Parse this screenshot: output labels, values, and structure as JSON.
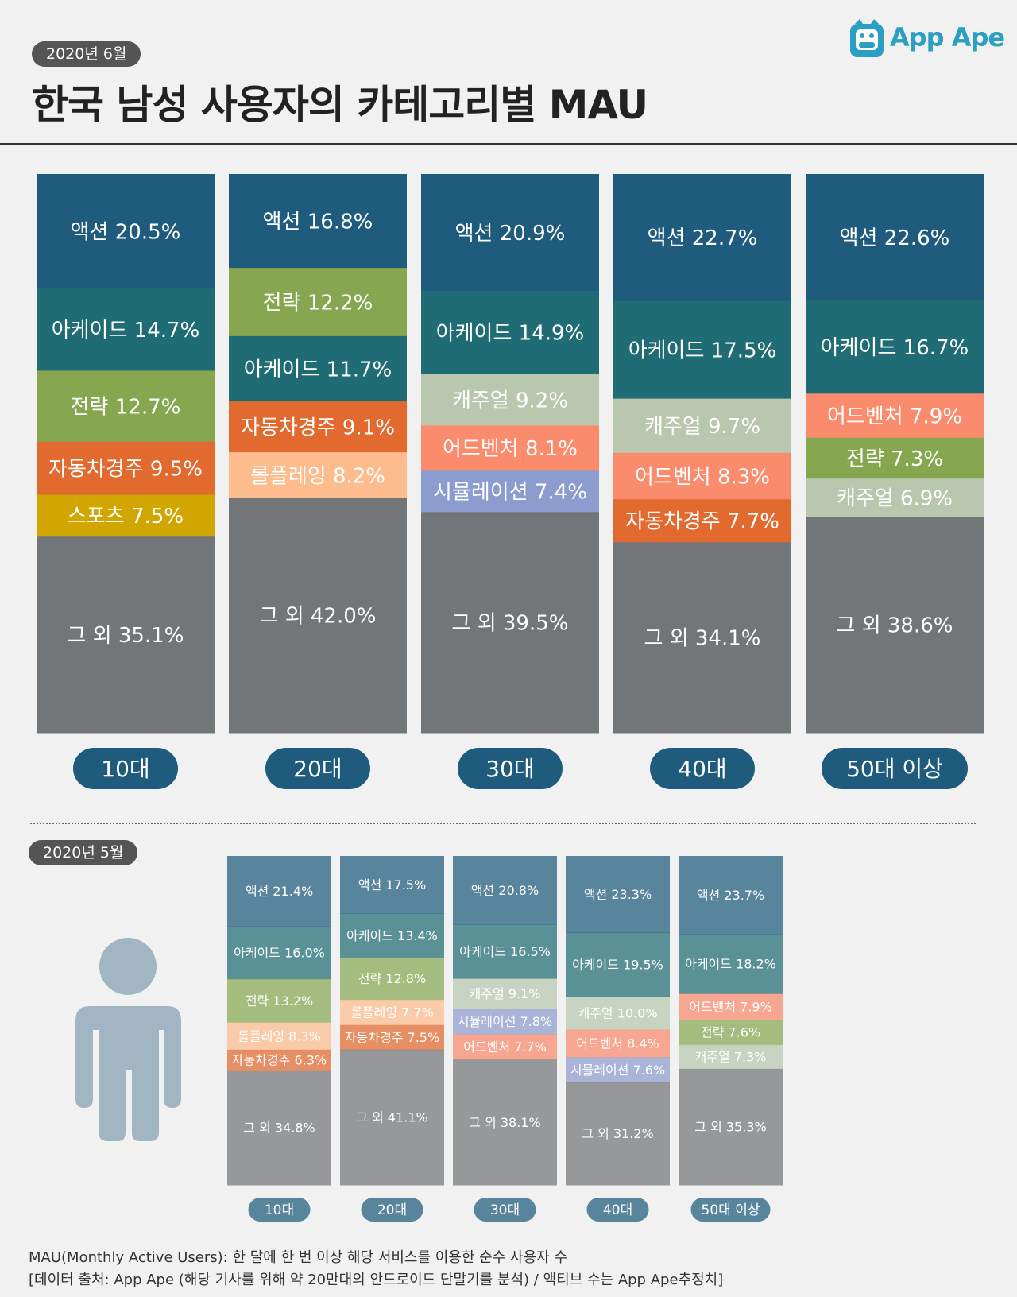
{
  "header": {
    "date": "2020년 6월",
    "title": "한국 남성 사용자의 카테고리별 MAU",
    "logo_text": "App Ape"
  },
  "colors": {
    "액션": "#1e5b7c",
    "아케이드": "#1f6c74",
    "전략": "#86a750",
    "자동차경주": "#e26a2f",
    "스포츠": "#d1a600",
    "롤플레잉": "#fdbc8d",
    "캐주얼": "#b9c7ae",
    "어드벤처": "#fa8b6c",
    "시뮬레이션": "#8d9cce",
    "그 외": "#737679",
    "label_pill": "#1f5b7c",
    "figure": "#a2b5c3"
  },
  "chart_data": [
    {
      "type": "stacked-bar",
      "title": "2020년 6월",
      "categories": [
        "10대",
        "20대",
        "30대",
        "40대",
        "50대 이상"
      ],
      "stacks": [
        [
          {
            "category": "액션",
            "value": 20.5,
            "label": "액션 20.5%"
          },
          {
            "category": "아케이드",
            "value": 14.7,
            "label": "아케이드 14.7%"
          },
          {
            "category": "전략",
            "value": 12.7,
            "label": "전략 12.7%"
          },
          {
            "category": "자동차경주",
            "value": 9.5,
            "label": "자동차경주 9.5%"
          },
          {
            "category": "스포츠",
            "value": 7.5,
            "label": "스포츠 7.5%"
          },
          {
            "category": "그 외",
            "value": 35.1,
            "label": "그 외 35.1%"
          }
        ],
        [
          {
            "category": "액션",
            "value": 16.8,
            "label": "액션 16.8%"
          },
          {
            "category": "전략",
            "value": 12.2,
            "label": "전략 12.2%"
          },
          {
            "category": "아케이드",
            "value": 11.7,
            "label": "아케이드 11.7%"
          },
          {
            "category": "자동차경주",
            "value": 9.1,
            "label": "자동차경주 9.1%"
          },
          {
            "category": "롤플레잉",
            "value": 8.2,
            "label": "롤플레잉 8.2%"
          },
          {
            "category": "그 외",
            "value": 42.0,
            "label": "그 외 42.0%"
          }
        ],
        [
          {
            "category": "액션",
            "value": 20.9,
            "label": "액션 20.9%"
          },
          {
            "category": "아케이드",
            "value": 14.9,
            "label": "아케이드 14.9%"
          },
          {
            "category": "캐주얼",
            "value": 9.2,
            "label": "캐주얼 9.2%"
          },
          {
            "category": "어드벤처",
            "value": 8.1,
            "label": "어드벤처 8.1%"
          },
          {
            "category": "시뮬레이션",
            "value": 7.4,
            "label": "시뮬레이션 7.4%"
          },
          {
            "category": "그 외",
            "value": 39.5,
            "label": "그 외 39.5%"
          }
        ],
        [
          {
            "category": "액션",
            "value": 22.7,
            "label": "액션 22.7%"
          },
          {
            "category": "아케이드",
            "value": 17.5,
            "label": "아케이드 17.5%"
          },
          {
            "category": "캐주얼",
            "value": 9.7,
            "label": "캐주얼 9.7%"
          },
          {
            "category": "어드벤처",
            "value": 8.3,
            "label": "어드벤처 8.3%"
          },
          {
            "category": "자동차경주",
            "value": 7.7,
            "label": "자동차경주 7.7%"
          },
          {
            "category": "그 외",
            "value": 34.1,
            "label": "그 외 34.1%"
          }
        ],
        [
          {
            "category": "액션",
            "value": 22.6,
            "label": "액션 22.6%"
          },
          {
            "category": "아케이드",
            "value": 16.7,
            "label": "아케이드 16.7%"
          },
          {
            "category": "어드벤처",
            "value": 7.9,
            "label": "어드벤처 7.9%"
          },
          {
            "category": "전략",
            "value": 7.3,
            "label": "전략 7.3%"
          },
          {
            "category": "캐주얼",
            "value": 6.9,
            "label": "캐주얼 6.9%"
          },
          {
            "category": "그 외",
            "value": 38.6,
            "label": "그 외 38.6%"
          }
        ]
      ],
      "ylim": [
        0,
        100
      ],
      "xlabel": "",
      "ylabel": ""
    },
    {
      "type": "stacked-bar",
      "title": "2020년 5월",
      "categories": [
        "10대",
        "20대",
        "30대",
        "40대",
        "50대 이상"
      ],
      "stacks": [
        [
          {
            "category": "액션",
            "value": 21.4,
            "label": "액션 21.4%"
          },
          {
            "category": "아케이드",
            "value": 16.0,
            "label": "아케이드 16.0%"
          },
          {
            "category": "전략",
            "value": 13.2,
            "label": "전략 13.2%"
          },
          {
            "category": "롤플레잉",
            "value": 8.3,
            "label": "롤플레잉 8.3%"
          },
          {
            "category": "자동차경주",
            "value": 6.3,
            "label": "자동차경주 6.3%"
          },
          {
            "category": "그 외",
            "value": 34.8,
            "label": "그 외 34.8%"
          }
        ],
        [
          {
            "category": "액션",
            "value": 17.5,
            "label": "액션 17.5%"
          },
          {
            "category": "아케이드",
            "value": 13.4,
            "label": "아케이드 13.4%"
          },
          {
            "category": "전략",
            "value": 12.8,
            "label": "전략 12.8%"
          },
          {
            "category": "롤플레잉",
            "value": 7.7,
            "label": "롤플레잉 7.7%"
          },
          {
            "category": "자동차경주",
            "value": 7.5,
            "label": "자동차경주 7.5%"
          },
          {
            "category": "그 외",
            "value": 41.1,
            "label": "그 외 41.1%"
          }
        ],
        [
          {
            "category": "액션",
            "value": 20.8,
            "label": "액션 20.8%"
          },
          {
            "category": "아케이드",
            "value": 16.5,
            "label": "아케이드 16.5%"
          },
          {
            "category": "캐주얼",
            "value": 9.1,
            "label": "캐주얼 9.1%"
          },
          {
            "category": "시뮬레이션",
            "value": 7.8,
            "label": "시뮬레이션 7.8%"
          },
          {
            "category": "어드벤처",
            "value": 7.7,
            "label": "어드벤처 7.7%"
          },
          {
            "category": "그 외",
            "value": 38.1,
            "label": "그 외 38.1%"
          }
        ],
        [
          {
            "category": "액션",
            "value": 23.3,
            "label": "액션 23.3%"
          },
          {
            "category": "아케이드",
            "value": 19.5,
            "label": "아케이드 19.5%"
          },
          {
            "category": "캐주얼",
            "value": 10.0,
            "label": "캐주얼 10.0%"
          },
          {
            "category": "어드벤처",
            "value": 8.4,
            "label": "어드벤처 8.4%"
          },
          {
            "category": "시뮬레이션",
            "value": 7.6,
            "label": "시뮬레이션 7.6%"
          },
          {
            "category": "그 외",
            "value": 31.2,
            "label": "그 외 31.2%"
          }
        ],
        [
          {
            "category": "액션",
            "value": 23.7,
            "label": "액션 23.7%"
          },
          {
            "category": "아케이드",
            "value": 18.2,
            "label": "아케이드 18.2%"
          },
          {
            "category": "어드벤처",
            "value": 7.9,
            "label": "어드벤처 7.9%"
          },
          {
            "category": "전략",
            "value": 7.6,
            "label": "전략 7.6%"
          },
          {
            "category": "캐주얼",
            "value": 7.3,
            "label": "캐주얼 7.3%"
          },
          {
            "category": "그 외",
            "value": 35.3,
            "label": "그 외 35.3%"
          }
        ]
      ],
      "ylim": [
        0,
        100
      ],
      "xlabel": "",
      "ylabel": ""
    }
  ],
  "footer": {
    "line1": "MAU(Monthly Active Users):  한 달에 한 번 이상 해당 서비스를 이용한 순수 사용자 수",
    "line2": "[데이터 출처: App Ape (해당 기사를 위해 약 20만대의 안드로이드 단말기를 분석) / 액티브 수는 App Ape추정치]"
  }
}
